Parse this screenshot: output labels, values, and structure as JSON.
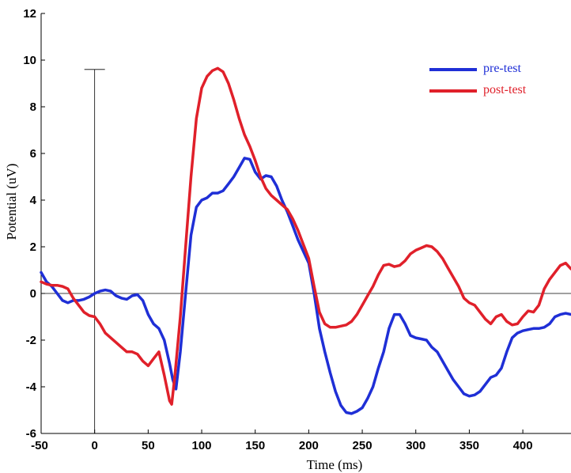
{
  "chart_data": {
    "type": "line",
    "title": "",
    "xlabel": "Time (ms)",
    "ylabel": "Potential (uV)",
    "xlim": [
      -50,
      445
    ],
    "ylim": [
      -6,
      12
    ],
    "x_ticks": [
      -50,
      0,
      50,
      100,
      150,
      200,
      250,
      300,
      350,
      400
    ],
    "y_ticks": [
      -6,
      -4,
      -2,
      0,
      2,
      4,
      6,
      8,
      10,
      12
    ],
    "x_tick_labels": [
      "-50",
      "0",
      "50",
      "100",
      "150",
      "200",
      "250",
      "300",
      "350",
      "400"
    ],
    "y_tick_labels": [
      "-6",
      "-4",
      "-2",
      "0",
      "2",
      "4",
      "6",
      "8",
      "10",
      "12"
    ],
    "grid": false,
    "legend_position": "top-right",
    "stimulus_marker": {
      "x": 0,
      "y_top": 9.6
    },
    "series": [
      {
        "name": "pre-test",
        "color": "#1f2fd6",
        "points": [
          [
            -50,
            0.9
          ],
          [
            -45,
            0.5
          ],
          [
            -40,
            0.3
          ],
          [
            -35,
            0.0
          ],
          [
            -30,
            -0.3
          ],
          [
            -25,
            -0.4
          ],
          [
            -20,
            -0.3
          ],
          [
            -15,
            -0.3
          ],
          [
            -10,
            -0.25
          ],
          [
            -5,
            -0.15
          ],
          [
            0,
            0.0
          ],
          [
            5,
            0.1
          ],
          [
            10,
            0.15
          ],
          [
            15,
            0.1
          ],
          [
            20,
            -0.1
          ],
          [
            25,
            -0.2
          ],
          [
            30,
            -0.25
          ],
          [
            35,
            -0.1
          ],
          [
            40,
            -0.05
          ],
          [
            45,
            -0.3
          ],
          [
            50,
            -0.9
          ],
          [
            55,
            -1.3
          ],
          [
            60,
            -1.5
          ],
          [
            65,
            -2.0
          ],
          [
            70,
            -3.0
          ],
          [
            73,
            -3.7
          ],
          [
            76,
            -4.1
          ],
          [
            80,
            -2.5
          ],
          [
            85,
            0.0
          ],
          [
            90,
            2.5
          ],
          [
            95,
            3.7
          ],
          [
            100,
            4.0
          ],
          [
            105,
            4.1
          ],
          [
            110,
            4.3
          ],
          [
            115,
            4.3
          ],
          [
            120,
            4.4
          ],
          [
            125,
            4.7
          ],
          [
            130,
            5.0
          ],
          [
            135,
            5.4
          ],
          [
            140,
            5.8
          ],
          [
            145,
            5.75
          ],
          [
            150,
            5.2
          ],
          [
            155,
            4.9
          ],
          [
            160,
            5.05
          ],
          [
            165,
            5.0
          ],
          [
            170,
            4.6
          ],
          [
            175,
            4.0
          ],
          [
            180,
            3.5
          ],
          [
            185,
            2.9
          ],
          [
            190,
            2.3
          ],
          [
            195,
            1.8
          ],
          [
            200,
            1.3
          ],
          [
            205,
            0.0
          ],
          [
            210,
            -1.5
          ],
          [
            215,
            -2.5
          ],
          [
            220,
            -3.4
          ],
          [
            225,
            -4.2
          ],
          [
            230,
            -4.8
          ],
          [
            235,
            -5.1
          ],
          [
            240,
            -5.15
          ],
          [
            245,
            -5.05
          ],
          [
            250,
            -4.9
          ],
          [
            255,
            -4.5
          ],
          [
            260,
            -4.0
          ],
          [
            265,
            -3.2
          ],
          [
            270,
            -2.5
          ],
          [
            275,
            -1.5
          ],
          [
            280,
            -0.9
          ],
          [
            285,
            -0.9
          ],
          [
            290,
            -1.3
          ],
          [
            295,
            -1.8
          ],
          [
            300,
            -1.9
          ],
          [
            305,
            -1.95
          ],
          [
            310,
            -2.0
          ],
          [
            315,
            -2.3
          ],
          [
            320,
            -2.5
          ],
          [
            325,
            -2.9
          ],
          [
            330,
            -3.3
          ],
          [
            335,
            -3.7
          ],
          [
            340,
            -4.0
          ],
          [
            345,
            -4.3
          ],
          [
            350,
            -4.4
          ],
          [
            355,
            -4.35
          ],
          [
            360,
            -4.2
          ],
          [
            365,
            -3.9
          ],
          [
            370,
            -3.6
          ],
          [
            375,
            -3.5
          ],
          [
            380,
            -3.2
          ],
          [
            385,
            -2.5
          ],
          [
            390,
            -1.9
          ],
          [
            395,
            -1.7
          ],
          [
            400,
            -1.6
          ],
          [
            405,
            -1.55
          ],
          [
            410,
            -1.5
          ],
          [
            415,
            -1.5
          ],
          [
            420,
            -1.45
          ],
          [
            425,
            -1.3
          ],
          [
            430,
            -1.0
          ],
          [
            435,
            -0.9
          ],
          [
            440,
            -0.85
          ],
          [
            445,
            -0.9
          ]
        ]
      },
      {
        "name": "post-test",
        "color": "#e0202a",
        "points": [
          [
            -50,
            0.5
          ],
          [
            -45,
            0.4
          ],
          [
            -40,
            0.35
          ],
          [
            -35,
            0.35
          ],
          [
            -30,
            0.3
          ],
          [
            -25,
            0.2
          ],
          [
            -20,
            -0.2
          ],
          [
            -15,
            -0.5
          ],
          [
            -10,
            -0.8
          ],
          [
            -5,
            -0.95
          ],
          [
            0,
            -1.0
          ],
          [
            5,
            -1.3
          ],
          [
            10,
            -1.7
          ],
          [
            15,
            -1.9
          ],
          [
            20,
            -2.1
          ],
          [
            25,
            -2.3
          ],
          [
            30,
            -2.5
          ],
          [
            35,
            -2.5
          ],
          [
            40,
            -2.6
          ],
          [
            45,
            -2.9
          ],
          [
            50,
            -3.1
          ],
          [
            55,
            -2.8
          ],
          [
            60,
            -2.5
          ],
          [
            65,
            -3.5
          ],
          [
            70,
            -4.6
          ],
          [
            72,
            -4.75
          ],
          [
            75,
            -3.5
          ],
          [
            80,
            -1.0
          ],
          [
            85,
            2.0
          ],
          [
            90,
            5.0
          ],
          [
            95,
            7.5
          ],
          [
            100,
            8.8
          ],
          [
            105,
            9.3
          ],
          [
            110,
            9.55
          ],
          [
            115,
            9.65
          ],
          [
            120,
            9.5
          ],
          [
            125,
            9.0
          ],
          [
            130,
            8.3
          ],
          [
            135,
            7.5
          ],
          [
            140,
            6.8
          ],
          [
            145,
            6.3
          ],
          [
            150,
            5.7
          ],
          [
            155,
            5.0
          ],
          [
            160,
            4.5
          ],
          [
            165,
            4.2
          ],
          [
            170,
            4.0
          ],
          [
            175,
            3.8
          ],
          [
            180,
            3.6
          ],
          [
            185,
            3.2
          ],
          [
            190,
            2.7
          ],
          [
            195,
            2.1
          ],
          [
            200,
            1.5
          ],
          [
            205,
            0.3
          ],
          [
            210,
            -0.8
          ],
          [
            215,
            -1.3
          ],
          [
            220,
            -1.45
          ],
          [
            225,
            -1.45
          ],
          [
            230,
            -1.4
          ],
          [
            235,
            -1.35
          ],
          [
            240,
            -1.2
          ],
          [
            245,
            -0.9
          ],
          [
            250,
            -0.5
          ],
          [
            255,
            -0.1
          ],
          [
            260,
            0.3
          ],
          [
            265,
            0.8
          ],
          [
            270,
            1.2
          ],
          [
            275,
            1.25
          ],
          [
            280,
            1.15
          ],
          [
            285,
            1.2
          ],
          [
            290,
            1.4
          ],
          [
            295,
            1.7
          ],
          [
            300,
            1.85
          ],
          [
            305,
            1.95
          ],
          [
            310,
            2.05
          ],
          [
            315,
            2.0
          ],
          [
            320,
            1.8
          ],
          [
            325,
            1.5
          ],
          [
            330,
            1.1
          ],
          [
            335,
            0.7
          ],
          [
            340,
            0.3
          ],
          [
            345,
            -0.2
          ],
          [
            350,
            -0.4
          ],
          [
            355,
            -0.5
          ],
          [
            360,
            -0.8
          ],
          [
            365,
            -1.1
          ],
          [
            370,
            -1.3
          ],
          [
            375,
            -1.0
          ],
          [
            380,
            -0.9
          ],
          [
            385,
            -1.2
          ],
          [
            390,
            -1.35
          ],
          [
            395,
            -1.3
          ],
          [
            400,
            -1.0
          ],
          [
            405,
            -0.75
          ],
          [
            410,
            -0.8
          ],
          [
            415,
            -0.5
          ],
          [
            420,
            0.2
          ],
          [
            425,
            0.6
          ],
          [
            430,
            0.9
          ],
          [
            435,
            1.2
          ],
          [
            440,
            1.3
          ],
          [
            445,
            1.05
          ]
        ]
      }
    ]
  }
}
